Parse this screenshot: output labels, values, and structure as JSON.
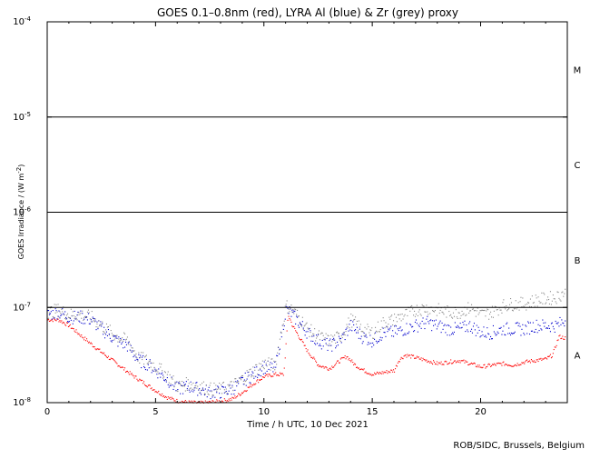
{
  "chart_data": {
    "type": "scatter",
    "title": "GOES 0.1–0.8nm (red), LYRA Al (blue) & Zr (grey) proxy",
    "xlabel": "Time / h UTC, 10 Dec 2021",
    "ylabel": "GOES Irradiance / (W m",
    "ylabel_exp": "-2",
    "ylabel_close": ")",
    "xlim": [
      0,
      24
    ],
    "ylim_log10": [
      -8,
      -4
    ],
    "ylim": [
      1e-08,
      0.0001
    ],
    "y_scale": "log",
    "x_ticks": [
      {
        "value": 0,
        "label": "0"
      },
      {
        "value": 5,
        "label": "5"
      },
      {
        "value": 10,
        "label": "10"
      },
      {
        "value": 15,
        "label": "15"
      },
      {
        "value": 20,
        "label": "20"
      }
    ],
    "y_ticks": [
      {
        "exp": -8,
        "base": "10",
        "power": "-8"
      },
      {
        "exp": -7,
        "base": "10",
        "power": "-7"
      },
      {
        "exp": -6,
        "base": "10",
        "power": "-6"
      },
      {
        "exp": -5,
        "base": "10",
        "power": "-5"
      },
      {
        "exp": -4,
        "base": "10",
        "power": "-4"
      }
    ],
    "class_thresholds": [
      1e-07,
      1e-06,
      1e-05
    ],
    "flare_classes": [
      {
        "label": "A",
        "exp": -7.5
      },
      {
        "label": "B",
        "exp": -6.5
      },
      {
        "label": "C",
        "exp": -5.5
      },
      {
        "label": "M",
        "exp": -4.5
      }
    ],
    "series": [
      {
        "name": "GOES 0.1–0.8nm",
        "color": "#ff0000",
        "x": [
          0,
          0.5,
          1,
          1.5,
          2,
          2.5,
          3,
          3.5,
          4,
          4.5,
          5,
          5.5,
          6,
          6.5,
          7,
          7.5,
          8,
          8.5,
          9,
          9.5,
          10,
          10.5,
          10.9,
          11.1,
          11.3,
          11.6,
          12,
          12.5,
          13,
          13.5,
          13.8,
          14.2,
          14.6,
          15,
          15.5,
          16,
          16.2,
          16.5,
          17,
          17.5,
          18,
          18.5,
          19,
          19.5,
          20,
          20.5,
          21,
          21.5,
          22,
          22.5,
          23,
          23.3,
          23.6,
          23.9
        ],
        "y": [
          7.5e-08,
          7.5e-08,
          6.5e-08,
          5.2e-08,
          4.2e-08,
          3.4e-08,
          2.8e-08,
          2.3e-08,
          1.9e-08,
          1.6e-08,
          1.35e-08,
          1.15e-08,
          1.05e-08,
          1.02e-08,
          1e-08,
          1.02e-08,
          1.05e-08,
          1.1e-08,
          1.3e-08,
          1.6e-08,
          1.9e-08,
          2e-08,
          2e-08,
          8.5e-08,
          6.5e-08,
          5e-08,
          3.5e-08,
          2.5e-08,
          2.3e-08,
          2.8e-08,
          3.1e-08,
          2.5e-08,
          2.2e-08,
          2e-08,
          2.1e-08,
          2.2e-08,
          2.8e-08,
          3.2e-08,
          3e-08,
          2.8e-08,
          2.6e-08,
          2.7e-08,
          2.8e-08,
          2.6e-08,
          2.4e-08,
          2.5e-08,
          2.6e-08,
          2.5e-08,
          2.7e-08,
          2.8e-08,
          2.9e-08,
          3.2e-08,
          5e-08,
          4.8e-08
        ]
      },
      {
        "name": "LYRA Al proxy",
        "color": "#0000cc",
        "x": [
          0,
          0.5,
          1,
          1.5,
          2,
          2.7,
          3.2,
          3.7,
          4.2,
          4.6,
          5,
          5.5,
          6,
          6.5,
          7,
          7.5,
          8,
          8.5,
          9,
          9.5,
          10,
          10.5,
          11,
          11.2,
          11.6,
          12,
          12.5,
          13,
          13.5,
          14,
          14.5,
          15,
          15.5,
          16,
          16.5,
          17,
          17.5,
          18,
          18.5,
          19,
          19.5,
          20,
          20.5,
          21,
          21.5,
          22,
          22.5,
          23,
          23.5,
          23.9
        ],
        "y": [
          8.5e-08,
          9e-08,
          8e-08,
          8e-08,
          7.5e-08,
          5.5e-08,
          4.5e-08,
          4e-08,
          2.8e-08,
          2.6e-08,
          2.2e-08,
          1.8e-08,
          1.4e-08,
          1.5e-08,
          1.4e-08,
          1.3e-08,
          1.3e-08,
          1.4e-08,
          1.7e-08,
          2e-08,
          2.4e-08,
          2.3e-08,
          9.5e-08,
          9e-08,
          7e-08,
          5.5e-08,
          4.5e-08,
          4e-08,
          4.5e-08,
          6.5e-08,
          5e-08,
          4.5e-08,
          5.5e-08,
          5.5e-08,
          6e-08,
          6.5e-08,
          7e-08,
          6.5e-08,
          6e-08,
          6e-08,
          6.5e-08,
          5.5e-08,
          5.5e-08,
          6e-08,
          6e-08,
          6e-08,
          6.5e-08,
          6.5e-08,
          6.5e-08,
          7.5e-08
        ]
      },
      {
        "name": "LYRA Zr proxy",
        "color": "#888888",
        "x": [
          0,
          0.5,
          1,
          1.5,
          2,
          2.7,
          3.2,
          3.7,
          4.2,
          4.6,
          5,
          5.5,
          6,
          6.5,
          7,
          7.5,
          8,
          8.5,
          9,
          9.5,
          10,
          10.5,
          11,
          11.2,
          11.6,
          12,
          12.5,
          13,
          13.5,
          14,
          14.5,
          15,
          15.5,
          16,
          16.5,
          17,
          17.5,
          18,
          18.5,
          19,
          19.5,
          20,
          20.5,
          21,
          21.5,
          22,
          22.5,
          23,
          23.5,
          23.9
        ],
        "y": [
          9e-08,
          9.5e-08,
          8.5e-08,
          8.5e-08,
          8e-08,
          6e-08,
          5e-08,
          4.5e-08,
          3e-08,
          2.8e-08,
          2.4e-08,
          2e-08,
          1.5e-08,
          1.6e-08,
          1.5e-08,
          1.4e-08,
          1.4e-08,
          1.5e-08,
          1.8e-08,
          2.2e-08,
          2.6e-08,
          2.5e-08,
          1.05e-07,
          1e-07,
          8e-08,
          6e-08,
          5e-08,
          4.5e-08,
          5e-08,
          7.5e-08,
          6e-08,
          5.5e-08,
          7e-08,
          7.5e-08,
          8.5e-08,
          9.5e-08,
          1e-07,
          9.5e-08,
          9e-08,
          9e-08,
          1e-07,
          8.5e-08,
          9e-08,
          1.05e-07,
          1.1e-07,
          1.1e-07,
          1.2e-07,
          1.25e-07,
          1.3e-07,
          1.5e-07
        ]
      }
    ]
  },
  "credit": "ROB/SIDC, Brussels, Belgium"
}
